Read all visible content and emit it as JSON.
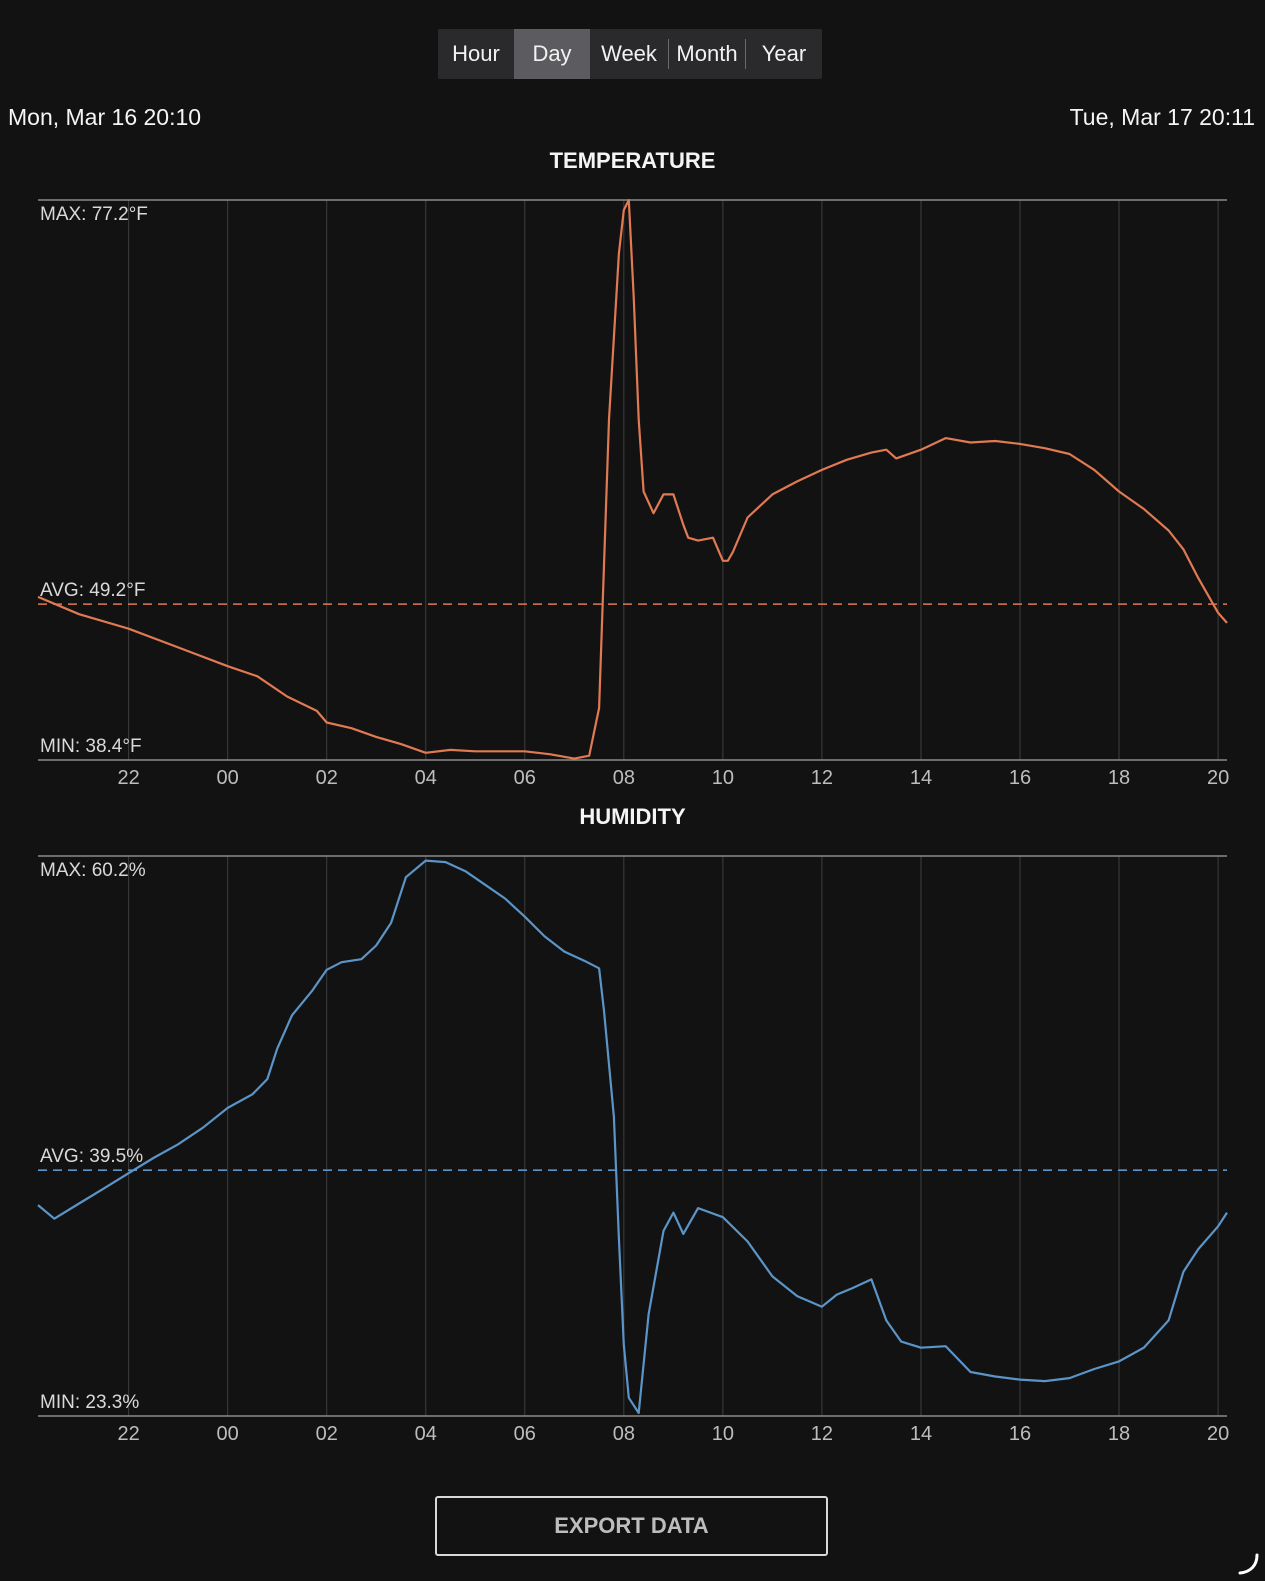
{
  "range_tabs": [
    {
      "label": "Hour",
      "active": false
    },
    {
      "label": "Day",
      "active": true
    },
    {
      "label": "Week",
      "active": false
    },
    {
      "label": "Month",
      "active": false
    },
    {
      "label": "Year",
      "active": false
    }
  ],
  "range": {
    "start": "Mon, Mar 16 20:10",
    "end": "Tue, Mar 17 20:11"
  },
  "export_label": "EXPORT DATA",
  "chart_data": [
    {
      "type": "line",
      "title": "TEMPERATURE",
      "color": "#e07a52",
      "x_domain": [
        20.17,
        44.18
      ],
      "ylim": [
        38.4,
        77.2
      ],
      "x_ticks": [
        "22",
        "00",
        "02",
        "04",
        "06",
        "08",
        "10",
        "12",
        "14",
        "16",
        "18",
        "20"
      ],
      "x_tick_hours": [
        22,
        24,
        26,
        28,
        30,
        32,
        34,
        36,
        38,
        40,
        42,
        44
      ],
      "max_label": "MAX: 77.2°F",
      "avg_label": "AVG: 49.2°F",
      "min_label": "MIN: 38.4°F",
      "avg": 49.2,
      "x": [
        20.17,
        21.0,
        22.0,
        23.0,
        24.0,
        24.6,
        25.2,
        25.8,
        26.0,
        26.5,
        27.0,
        27.5,
        28.0,
        28.5,
        29.0,
        30.0,
        30.5,
        31.0,
        31.3,
        31.5,
        31.7,
        31.9,
        32.0,
        32.1,
        32.2,
        32.3,
        32.4,
        32.6,
        32.8,
        33.0,
        33.2,
        33.3,
        33.5,
        33.8,
        34.0,
        34.1,
        34.2,
        34.5,
        35.0,
        35.5,
        36.0,
        36.5,
        37.0,
        37.3,
        37.5,
        38.0,
        38.5,
        39.0,
        39.5,
        40.0,
        40.5,
        41.0,
        41.5,
        42.0,
        42.5,
        43.0,
        43.3,
        43.6,
        44.0,
        44.18
      ],
      "y": [
        49.7,
        48.5,
        47.5,
        46.2,
        44.9,
        44.2,
        42.8,
        41.8,
        41.0,
        40.6,
        40.0,
        39.5,
        38.9,
        39.1,
        39.0,
        39.0,
        38.8,
        38.5,
        38.7,
        42.0,
        62.0,
        73.5,
        76.5,
        77.2,
        70.5,
        62.0,
        57.0,
        55.5,
        56.8,
        56.8,
        54.7,
        53.8,
        53.6,
        53.8,
        52.2,
        52.2,
        52.8,
        55.2,
        56.8,
        57.7,
        58.5,
        59.2,
        59.7,
        59.9,
        59.3,
        59.9,
        60.7,
        60.4,
        60.5,
        60.3,
        60.0,
        59.6,
        58.5,
        57.0,
        55.8,
        54.3,
        53.0,
        51.0,
        48.6,
        47.9
      ]
    },
    {
      "type": "line",
      "title": "HUMIDITY",
      "color": "#5b95c8",
      "x_domain": [
        20.17,
        44.18
      ],
      "ylim": [
        23.3,
        60.2
      ],
      "x_ticks": [
        "22",
        "00",
        "02",
        "04",
        "06",
        "08",
        "10",
        "12",
        "14",
        "16",
        "18",
        "20"
      ],
      "x_tick_hours": [
        22,
        24,
        26,
        28,
        30,
        32,
        34,
        36,
        38,
        40,
        42,
        44
      ],
      "max_label": "MAX: 60.2%",
      "avg_label": "AVG: 39.5%",
      "min_label": "MIN: 23.3%",
      "avg": 39.5,
      "x": [
        20.17,
        20.5,
        21.0,
        21.5,
        22.0,
        22.5,
        23.0,
        23.5,
        24.0,
        24.5,
        24.8,
        25.0,
        25.3,
        25.7,
        26.0,
        26.3,
        26.7,
        27.0,
        27.3,
        27.6,
        28.0,
        28.4,
        28.8,
        29.2,
        29.6,
        30.0,
        30.4,
        30.8,
        31.2,
        31.5,
        31.6,
        31.8,
        31.9,
        32.0,
        32.1,
        32.3,
        32.5,
        32.8,
        33.0,
        33.2,
        33.5,
        34.0,
        34.5,
        35.0,
        35.5,
        36.0,
        36.3,
        36.6,
        37.0,
        37.3,
        37.6,
        38.0,
        38.5,
        39.0,
        39.5,
        40.0,
        40.5,
        41.0,
        41.5,
        42.0,
        42.5,
        43.0,
        43.3,
        43.6,
        44.0,
        44.18
      ],
      "y": [
        37.2,
        36.3,
        37.3,
        38.3,
        39.3,
        40.3,
        41.2,
        42.3,
        43.6,
        44.5,
        45.5,
        47.5,
        49.7,
        51.3,
        52.7,
        53.2,
        53.4,
        54.3,
        55.8,
        58.8,
        59.9,
        59.8,
        59.2,
        58.3,
        57.4,
        56.2,
        54.9,
        53.9,
        53.3,
        52.8,
        50.0,
        43.0,
        35.0,
        28.0,
        24.5,
        23.5,
        30.0,
        35.5,
        36.7,
        35.3,
        37.0,
        36.4,
        34.8,
        32.5,
        31.2,
        30.5,
        31.3,
        31.7,
        32.3,
        29.6,
        28.2,
        27.8,
        27.9,
        26.2,
        25.9,
        25.7,
        25.6,
        25.8,
        26.4,
        26.9,
        27.8,
        29.6,
        32.8,
        34.3,
        35.8,
        36.7
      ]
    }
  ]
}
